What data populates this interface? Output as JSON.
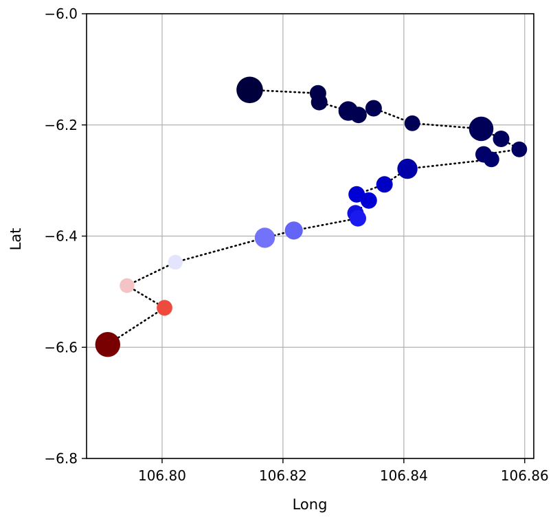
{
  "chart_data": {
    "type": "scatter",
    "title": "",
    "xlabel": "Long",
    "ylabel": "Lat",
    "xlim": [
      106.7875,
      106.8615
    ],
    "ylim": [
      -6.8,
      -6.0
    ],
    "xticks": [
      106.8,
      106.82,
      106.84,
      106.86
    ],
    "xtick_labels": [
      "106.80",
      "106.82",
      "106.84",
      "106.86"
    ],
    "yticks": [
      -6.0,
      -6.2,
      -6.4,
      -6.6,
      -6.8
    ],
    "ytick_labels": [
      "−6.0",
      "−6.2",
      "−6.4",
      "−6.6",
      "−6.8"
    ],
    "grid": true,
    "path_style": "dotted black line connecting points in order",
    "colormap": "seismic",
    "points": [
      {
        "x": 106.8145,
        "y": -6.137,
        "size": 2.6,
        "color": "#00003c"
      },
      {
        "x": 106.8258,
        "y": -6.143,
        "size": 1.0,
        "color": "#00004a"
      },
      {
        "x": 106.826,
        "y": -6.159,
        "size": 1.0,
        "color": "#00004a"
      },
      {
        "x": 106.8308,
        "y": -6.175,
        "size": 1.4,
        "color": "#000050"
      },
      {
        "x": 106.8325,
        "y": -6.182,
        "size": 1.0,
        "color": "#000050"
      },
      {
        "x": 106.835,
        "y": -6.17,
        "size": 1.0,
        "color": "#000052"
      },
      {
        "x": 106.8414,
        "y": -6.197,
        "size": 0.9,
        "color": "#000055"
      },
      {
        "x": 106.8528,
        "y": -6.207,
        "size": 2.2,
        "color": "#000058"
      },
      {
        "x": 106.8561,
        "y": -6.225,
        "size": 1.0,
        "color": "#00005c"
      },
      {
        "x": 106.8591,
        "y": -6.244,
        "size": 0.9,
        "color": "#000060"
      },
      {
        "x": 106.8532,
        "y": -6.253,
        "size": 1.0,
        "color": "#000068"
      },
      {
        "x": 106.8545,
        "y": -6.262,
        "size": 0.9,
        "color": "#00006c"
      },
      {
        "x": 106.8406,
        "y": -6.279,
        "size": 1.5,
        "color": "#0000a8"
      },
      {
        "x": 106.8368,
        "y": -6.307,
        "size": 1.0,
        "color": "#0000c4"
      },
      {
        "x": 106.8322,
        "y": -6.325,
        "size": 1.0,
        "color": "#0000d4"
      },
      {
        "x": 106.8342,
        "y": -6.336,
        "size": 1.0,
        "color": "#0000d4"
      },
      {
        "x": 106.832,
        "y": -6.359,
        "size": 1.0,
        "color": "#1010e0"
      },
      {
        "x": 106.8324,
        "y": -6.368,
        "size": 1.0,
        "color": "#1a1aee"
      },
      {
        "x": 106.8218,
        "y": -6.39,
        "size": 1.2,
        "color": "#6464f6"
      },
      {
        "x": 106.817,
        "y": -6.403,
        "size": 1.5,
        "color": "#7272fa"
      },
      {
        "x": 106.8022,
        "y": -6.447,
        "size": 0.8,
        "color": "#e4e4ff"
      },
      {
        "x": 106.7942,
        "y": -6.489,
        "size": 0.8,
        "color": "#f4c4c4"
      },
      {
        "x": 106.8004,
        "y": -6.529,
        "size": 0.9,
        "color": "#ee4a3e"
      },
      {
        "x": 106.791,
        "y": -6.595,
        "size": 2.3,
        "color": "#780000"
      }
    ]
  }
}
